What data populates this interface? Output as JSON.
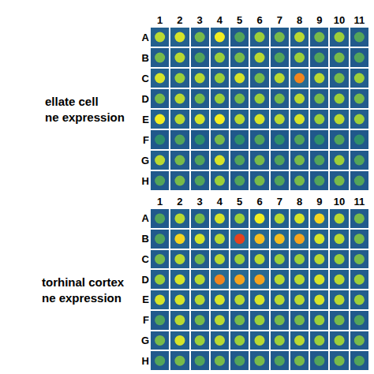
{
  "chart_data": [
    {
      "type": "heatmap",
      "label_lines": [
        "ellate cell",
        "ne expression"
      ],
      "x": [
        "1",
        "2",
        "3",
        "4",
        "5",
        "6",
        "7",
        "8",
        "9",
        "10",
        "11"
      ],
      "y": [
        "A",
        "B",
        "C",
        "D",
        "E",
        "F",
        "G",
        "H"
      ],
      "zlim": [
        0,
        100
      ],
      "cells": [
        [
          55,
          60,
          45,
          65,
          40,
          50,
          45,
          55,
          45,
          50,
          40
        ],
        [
          45,
          55,
          40,
          50,
          45,
          55,
          40,
          50,
          40,
          45,
          40
        ],
        [
          60,
          50,
          55,
          50,
          60,
          45,
          55,
          85,
          55,
          45,
          50
        ],
        [
          45,
          55,
          45,
          50,
          45,
          50,
          45,
          55,
          45,
          50,
          45
        ],
        [
          65,
          55,
          60,
          65,
          55,
          60,
          55,
          60,
          50,
          55,
          50
        ],
        [
          35,
          40,
          35,
          45,
          35,
          40,
          35,
          40,
          35,
          40,
          35
        ],
        [
          55,
          45,
          40,
          60,
          40,
          45,
          40,
          45,
          40,
          50,
          40
        ],
        [
          40,
          45,
          40,
          50,
          40,
          45,
          40,
          45,
          40,
          45,
          40
        ]
      ]
    },
    {
      "type": "heatmap",
      "label_lines": [
        "torhinal cortex",
        "ne expression"
      ],
      "x": [
        "1",
        "2",
        "3",
        "4",
        "5",
        "6",
        "7",
        "8",
        "9",
        "10",
        "11"
      ],
      "y": [
        "A",
        "B",
        "C",
        "D",
        "E",
        "F",
        "G",
        "H"
      ],
      "zlim": [
        0,
        100
      ],
      "cells": [
        [
          40,
          55,
          45,
          60,
          50,
          65,
          55,
          60,
          70,
          55,
          45
        ],
        [
          40,
          70,
          60,
          55,
          95,
          75,
          75,
          80,
          60,
          55,
          45
        ],
        [
          45,
          55,
          45,
          55,
          50,
          55,
          50,
          50,
          55,
          50,
          45
        ],
        [
          50,
          60,
          55,
          85,
          80,
          80,
          55,
          55,
          60,
          55,
          50
        ],
        [
          60,
          60,
          55,
          60,
          55,
          60,
          55,
          55,
          60,
          55,
          50
        ],
        [
          40,
          55,
          45,
          55,
          45,
          50,
          45,
          45,
          50,
          45,
          40
        ],
        [
          45,
          60,
          50,
          55,
          50,
          55,
          50,
          55,
          50,
          50,
          45
        ],
        [
          40,
          45,
          40,
          45,
          40,
          45,
          40,
          45,
          40,
          45,
          40
        ]
      ]
    }
  ]
}
